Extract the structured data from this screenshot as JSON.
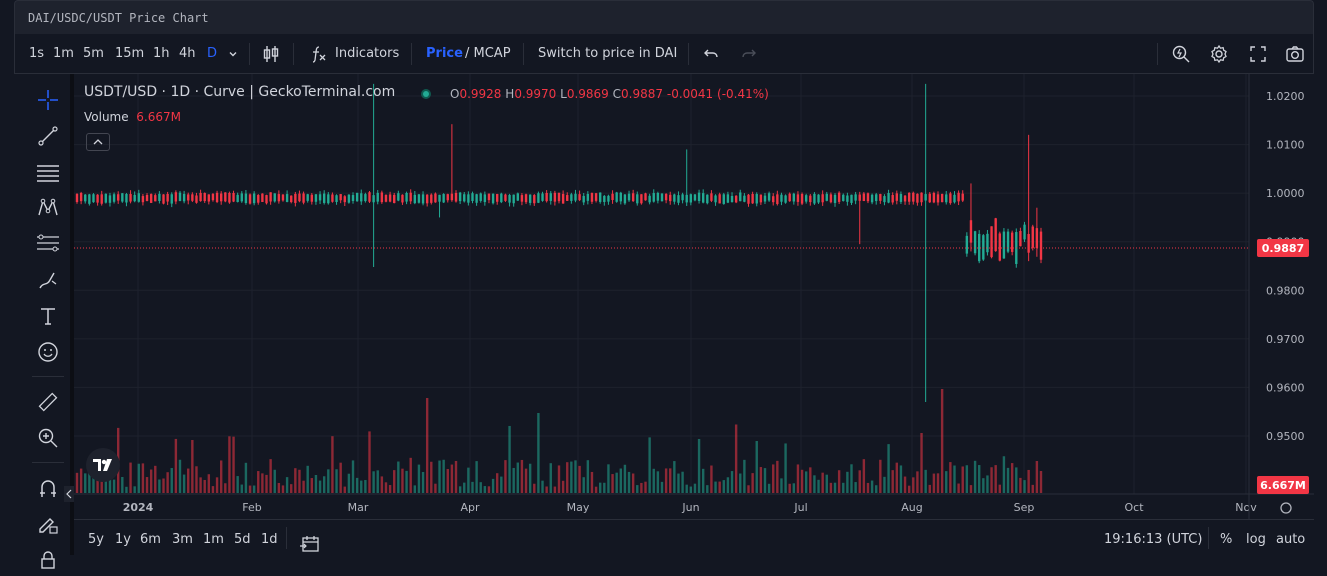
{
  "window": {
    "title": "DAI/USDC/USDT Price Chart"
  },
  "toolbar": {
    "intervals": [
      "1s",
      "1m",
      "5m",
      "15m",
      "1h",
      "4h",
      "D"
    ],
    "active_interval": "D",
    "indicators_label": "Indicators",
    "price_label": "Price",
    "mcap_label": "/ MCAP",
    "switch_label": "Switch to price in DAI"
  },
  "legend": {
    "symbol": "USDT/USD · 1D · Curve | GeckoTerminal.com",
    "o_label": "O",
    "o": "0.9928",
    "h_label": "H",
    "h": "0.9970",
    "l_label": "L",
    "l": "0.9869",
    "c_label": "C",
    "c": "0.9887",
    "change": "-0.0041 (-0.41%)",
    "volume_label": "Volume",
    "volume": "6.667M"
  },
  "colors": {
    "up": "#22ab94",
    "down": "#f23645",
    "accent": "#2962ff",
    "background": "#131722",
    "grid": "#1e222d"
  },
  "chart_data": {
    "type": "candlestick",
    "title": "USDT/USD · 1D · Curve | GeckoTerminal.com",
    "x_ticks": [
      "2024",
      "Feb",
      "Mar",
      "Apr",
      "May",
      "Jun",
      "Jul",
      "Aug",
      "Sep",
      "Oct",
      "Nov"
    ],
    "y_ticks": [
      "1.0200",
      "1.0100",
      "1.0000",
      "0.9900",
      "0.9800",
      "0.9700",
      "0.9600",
      "0.9500"
    ],
    "ylim": [
      0.9495,
      1.0225
    ],
    "last_price": "0.9887",
    "last_volume": "6.667M",
    "grid": true
  },
  "bottom": {
    "ranges": [
      "5y",
      "1y",
      "6m",
      "3m",
      "1m",
      "5d",
      "1d"
    ],
    "time": "19:16:13 (UTC)",
    "percent": "%",
    "log": "log",
    "auto": "auto"
  }
}
